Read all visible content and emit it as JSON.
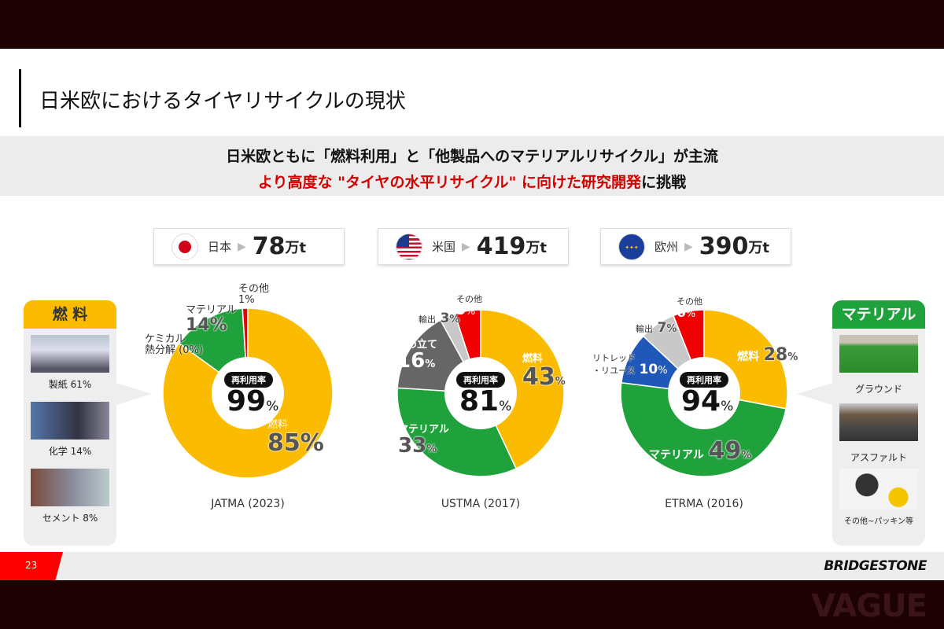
{
  "title": "日米欧におけるタイヤリサイクルの現状",
  "banner": {
    "line1": "日米欧ともに「燃料利用」と「他製品へのマテリアルリサイクル」が主流",
    "line2_red": "より高度な \"タイヤの水平リサイクル\" に向けた研究開発",
    "line2_dark": "に挑戦"
  },
  "regions": [
    {
      "name": "日本",
      "value": "78",
      "unit": "万t",
      "flag": "japan-flag-icon"
    },
    {
      "name": "米国",
      "value": "419",
      "unit": "万t",
      "flag": "us-flag-icon"
    },
    {
      "name": "欧州",
      "value": "390",
      "unit": "万t",
      "flag": "eu-flag-icon"
    }
  ],
  "colors": {
    "fuel": "#fbbb00",
    "material": "#1fa13b",
    "other": "#f00000",
    "landfill": "#666666",
    "export": "#c8c8c8",
    "retread": "#1f58b8",
    "chemical": "#9ccf8e"
  },
  "chart_data": [
    {
      "type": "pie",
      "source": "JATMA (2023)",
      "rate_label": "再利用率",
      "rate": "99",
      "rate_unit": "%",
      "slices": [
        {
          "label": "燃料",
          "value": 85,
          "color": "#fbbb00"
        },
        {
          "label": "ケミカル熱分解",
          "value": 0,
          "color": "#9ccf8e",
          "display": "ケミカル 熱分解 (0%)"
        },
        {
          "label": "マテリアル",
          "value": 14,
          "color": "#1fa13b"
        },
        {
          "label": "その他",
          "value": 1,
          "color": "#f00000"
        }
      ]
    },
    {
      "type": "pie",
      "source": "USTMA (2017)",
      "rate_label": "再利用率",
      "rate": "81",
      "rate_unit": "%",
      "slices": [
        {
          "label": "燃料",
          "value": 43,
          "color": "#fbbb00"
        },
        {
          "label": "マテリアル",
          "value": 33,
          "color": "#1fa13b"
        },
        {
          "label": "埋め立て",
          "value": 16,
          "color": "#666666"
        },
        {
          "label": "輸出",
          "value": 3,
          "color": "#c8c8c8"
        },
        {
          "label": "その他",
          "value": 5,
          "color": "#f00000"
        }
      ]
    },
    {
      "type": "pie",
      "source": "ETRMA (2016)",
      "rate_label": "再利用率",
      "rate": "94",
      "rate_unit": "%",
      "slices": [
        {
          "label": "燃料",
          "value": 28,
          "color": "#fbbb00"
        },
        {
          "label": "マテリアル",
          "value": 49,
          "color": "#1fa13b"
        },
        {
          "label": "リトレッド・リユース",
          "value": 10,
          "color": "#1f58b8"
        },
        {
          "label": "輸出",
          "value": 7,
          "color": "#c8c8c8"
        },
        {
          "label": "その他",
          "value": 6,
          "color": "#f00000"
        }
      ]
    }
  ],
  "labels": {
    "jp": {
      "other": "その他",
      "other_v": "1%",
      "mat": "マテリアル",
      "mat_v": "14%",
      "chem1": "ケミカル",
      "chem2": "熱分解 (0%)",
      "fuel": "燃料",
      "fuel_v": "85%"
    },
    "us": {
      "other": "その他",
      "other_v": "5",
      "exp": "輸出",
      "exp_v": "3",
      "land": "埋め立て",
      "land_v": "16",
      "mat": "マテリアル",
      "mat_v": "33",
      "fuel": "燃料",
      "fuel_v": "43",
      "pct": "%"
    },
    "eu": {
      "other": "その他",
      "other_v": "6",
      "exp": "輸出",
      "exp_v": "7",
      "ret1": "リトレッド",
      "ret2": "・リユース",
      "ret_v": "10",
      "fuel": "燃料",
      "fuel_v": "28",
      "mat": "マテリアル",
      "mat_v": "49",
      "pct": "%"
    }
  },
  "left_panel": {
    "title": "燃 料",
    "items": [
      "製紙 61%",
      "化学 14%",
      "セメント 8%"
    ]
  },
  "right_panel": {
    "title": "マテリアル",
    "items": [
      "グラウンド",
      "アスファルト",
      "その他~パッキン等"
    ]
  },
  "footer": {
    "page": "23",
    "logo": "BRIDGESTONE"
  },
  "watermark": "VAGUE"
}
